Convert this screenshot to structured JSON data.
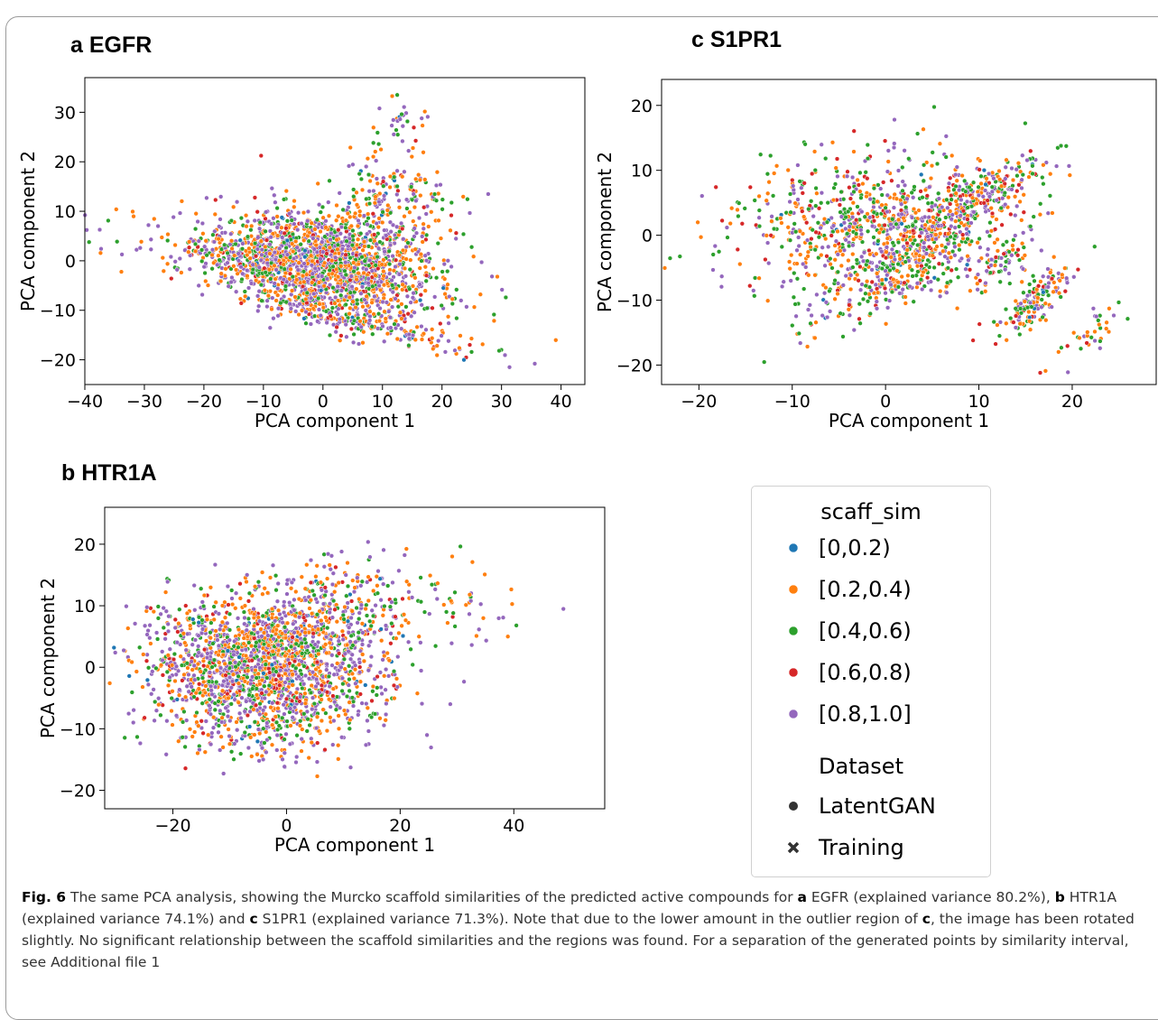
{
  "legend": {
    "title1": "scaff_sim",
    "items": [
      {
        "label": "[0,0.2)",
        "color": "#1f77b4"
      },
      {
        "label": "[0.2,0.4)",
        "color": "#ff7f0e"
      },
      {
        "label": "[0.4,0.6)",
        "color": "#2ca02c"
      },
      {
        "label": "[0.6,0.8)",
        "color": "#d62728"
      },
      {
        "label": "[0.8,1.0]",
        "color": "#9467bd"
      }
    ],
    "title2": "Dataset",
    "markers": [
      {
        "label": "LatentGAN",
        "marker": "circle"
      },
      {
        "label": "Training",
        "marker": "x"
      }
    ]
  },
  "caption": {
    "fig": "Fig. 6",
    "parts": [
      "  The same PCA analysis, showing the Murcko scaffold similarities of the predicted active compounds for ",
      "a",
      " EGFR (explained variance 80.2%), ",
      "b",
      " HTR1A (explained variance 74.1%) and ",
      "c",
      " S1PR1 (explained variance 71.3%). Note that due to the lower amount in the outlier region of ",
      "c",
      ", the image has been rotated slightly. No significant relationship between the scaffold similarities and the regions was found. For a separation of the generated points by similarity interval, see Additional file 1"
    ]
  },
  "chart_data": [
    {
      "panel": "a EGFR",
      "letter": "a",
      "name": "EGFR",
      "type": "scatter",
      "xlabel": "PCA component 1",
      "ylabel": "PCA component 2",
      "xlim": [
        -40,
        44
      ],
      "ylim": [
        -25,
        37
      ],
      "xticks": [
        -40,
        -30,
        -20,
        -10,
        0,
        10,
        20,
        30,
        40
      ],
      "yticks": [
        -20,
        -10,
        0,
        10,
        20,
        30
      ],
      "clusters": [
        {
          "cx": 0,
          "cy": 0,
          "sx": 9,
          "sy": 5,
          "rot": -0.2,
          "n": 1400
        },
        {
          "cx": -5,
          "cy": -2,
          "sx": 14,
          "sy": 3,
          "rot": -0.25,
          "n": 500
        },
        {
          "cx": 5,
          "cy": -12,
          "sx": 10,
          "sy": 1.5,
          "rot": -0.3,
          "n": 200
        },
        {
          "cx": 12,
          "cy": 12,
          "sx": 5,
          "sy": 6,
          "rot": 0.3,
          "n": 200
        },
        {
          "cx": 14,
          "cy": 28,
          "sx": 2,
          "sy": 3,
          "rot": 0,
          "n": 25
        }
      ],
      "series": [
        {
          "name": "[0,0.2)",
          "color": "#1f77b4",
          "weight": 0.02
        },
        {
          "name": "[0.2,0.4)",
          "color": "#ff7f0e",
          "weight": 0.32
        },
        {
          "name": "[0.4,0.6)",
          "color": "#2ca02c",
          "weight": 0.22
        },
        {
          "name": "[0.6,0.8)",
          "color": "#d62728",
          "weight": 0.06
        },
        {
          "name": "[0.8,1.0]",
          "color": "#9467bd",
          "weight": 0.38
        }
      ]
    },
    {
      "panel": "b HTR1A",
      "letter": "b",
      "name": "HTR1A",
      "type": "scatter",
      "xlabel": "PCA component 1",
      "ylabel": "PCA component 2",
      "xlim": [
        -32,
        56
      ],
      "ylim": [
        -23,
        26
      ],
      "xticks": [
        -20,
        0,
        20,
        40
      ],
      "yticks": [
        -20,
        -10,
        0,
        10,
        20
      ],
      "clusters": [
        {
          "cx": -2,
          "cy": -1,
          "sx": 10,
          "sy": 6,
          "rot": 0.1,
          "n": 1500
        },
        {
          "cx": -12,
          "cy": 2,
          "sx": 7,
          "sy": 5,
          "rot": 0,
          "n": 400
        },
        {
          "cx": 8,
          "cy": 8,
          "sx": 9,
          "sy": 5,
          "rot": 0.25,
          "n": 300
        },
        {
          "cx": 30,
          "cy": 10,
          "sx": 6,
          "sy": 5,
          "rot": 0,
          "n": 40
        }
      ],
      "series": [
        {
          "name": "[0,0.2)",
          "color": "#1f77b4",
          "weight": 0.02
        },
        {
          "name": "[0.2,0.4)",
          "color": "#ff7f0e",
          "weight": 0.3
        },
        {
          "name": "[0.4,0.6)",
          "color": "#2ca02c",
          "weight": 0.2
        },
        {
          "name": "[0.6,0.8)",
          "color": "#d62728",
          "weight": 0.08
        },
        {
          "name": "[0.8,1.0]",
          "color": "#9467bd",
          "weight": 0.4
        }
      ]
    },
    {
      "panel": "c S1PR1",
      "letter": "c",
      "name": "S1PR1",
      "type": "scatter",
      "xlabel": "PCA component 1",
      "ylabel": "PCA component 2",
      "xlim": [
        -24,
        29
      ],
      "ylim": [
        -23,
        24
      ],
      "xticks": [
        -20,
        -10,
        0,
        10,
        20
      ],
      "yticks": [
        -20,
        -10,
        0,
        10,
        20
      ],
      "clusters": [
        {
          "cx": -2,
          "cy": 2,
          "sx": 7,
          "sy": 5,
          "rot": 0.35,
          "n": 700
        },
        {
          "cx": 3,
          "cy": -4,
          "sx": 7,
          "sy": 2.5,
          "rot": 0.75,
          "n": 400
        },
        {
          "cx": 10,
          "cy": 6,
          "sx": 5,
          "sy": 1.5,
          "rot": 0.7,
          "n": 200
        },
        {
          "cx": 12,
          "cy": -4,
          "sx": 3.5,
          "sy": 1.2,
          "rot": 0.9,
          "n": 80
        },
        {
          "cx": 16,
          "cy": -10,
          "sx": 3,
          "sy": 1.2,
          "rot": 1.0,
          "n": 150
        },
        {
          "cx": 22,
          "cy": -15,
          "sx": 3,
          "sy": 0.8,
          "rot": 0.95,
          "n": 35
        }
      ],
      "series": [
        {
          "name": "[0,0.2)",
          "color": "#1f77b4",
          "weight": 0.02
        },
        {
          "name": "[0.2,0.4)",
          "color": "#ff7f0e",
          "weight": 0.28
        },
        {
          "name": "[0.4,0.6)",
          "color": "#2ca02c",
          "weight": 0.3
        },
        {
          "name": "[0.6,0.8)",
          "color": "#d62728",
          "weight": 0.12
        },
        {
          "name": "[0.8,1.0]",
          "color": "#9467bd",
          "weight": 0.28
        }
      ]
    }
  ]
}
